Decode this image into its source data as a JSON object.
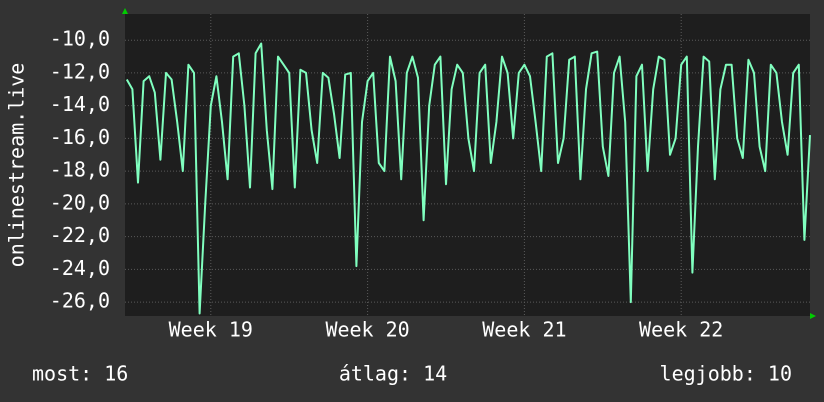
{
  "chart_data": {
    "type": "line",
    "y_label": "onlinestream.live",
    "x": [
      -0.25,
      0,
      0.25,
      0.5,
      0.75,
      1,
      1.25,
      1.5,
      1.75,
      2,
      2.25,
      2.5,
      2.75,
      3,
      3.25,
      3.5,
      3.75,
      4,
      4.25,
      4.5,
      4.75,
      5,
      5.25,
      5.5,
      5.75,
      6,
      6.25,
      6.5,
      6.75,
      7,
      7.25,
      7.5,
      7.75,
      8,
      8.25,
      8.5,
      8.75,
      9,
      9.25,
      9.5,
      9.75,
      10,
      10.25,
      10.5,
      10.75,
      11,
      11.25,
      11.5,
      11.75,
      12,
      12.25,
      12.5,
      12.75,
      13,
      13.25,
      13.5,
      13.75,
      14,
      14.25,
      14.5,
      14.75,
      15,
      15.25,
      15.5,
      15.75,
      16,
      16.25,
      16.5,
      16.75,
      17,
      17.25,
      17.5,
      17.75,
      18,
      18.25,
      18.5,
      18.75,
      19,
      19.25,
      19.5,
      19.75,
      20,
      20.25,
      20.5,
      20.75,
      21,
      21.25,
      21.5,
      21.75,
      22,
      22.25,
      22.5,
      22.75,
      23,
      23.25,
      23.5,
      23.75,
      24,
      24.25,
      24.5,
      24.75,
      25,
      25.25,
      25.5,
      25.75,
      26,
      26.25,
      26.5,
      26.75,
      27,
      27.25,
      27.5,
      27.75,
      28,
      28.25,
      28.5,
      28.75,
      29,
      29.25,
      29.5,
      29.75,
      30,
      30.25
    ],
    "series": [
      {
        "color": "#80ffbf",
        "values": [
          -12.4,
          -13.0,
          -18.7,
          -12.5,
          -12.2,
          -13.2,
          -17.3,
          -12.0,
          -12.4,
          -15.0,
          -18.0,
          -11.5,
          -12.0,
          -26.7,
          -20.0,
          -14.0,
          -12.2,
          -15.0,
          -18.5,
          -11.0,
          -10.8,
          -14.0,
          -19.0,
          -10.8,
          -10.2,
          -15.5,
          -19.1,
          -11.0,
          -11.5,
          -12.0,
          -19.0,
          -11.8,
          -12.0,
          -15.5,
          -17.5,
          -12.0,
          -12.3,
          -14.5,
          -17.2,
          -12.1,
          -12.0,
          -23.8,
          -15.0,
          -12.5,
          -12.0,
          -17.5,
          -18.0,
          -11.0,
          -12.5,
          -18.5,
          -12.0,
          -11.0,
          -12.3,
          -21.0,
          -14.0,
          -11.5,
          -11.0,
          -18.8,
          -13.0,
          -11.5,
          -12.0,
          -16.0,
          -18.0,
          -12.0,
          -11.5,
          -17.5,
          -15.0,
          -11.0,
          -12.0,
          -16.0,
          -12.0,
          -11.5,
          -12.2,
          -15.0,
          -18.0,
          -11.0,
          -10.8,
          -17.5,
          -16.0,
          -11.2,
          -11.0,
          -18.5,
          -13.0,
          -10.8,
          -10.7,
          -16.5,
          -18.3,
          -12.0,
          -11.0,
          -15.0,
          -26.0,
          -12.2,
          -11.5,
          -18.0,
          -13.0,
          -11.0,
          -11.2,
          -17.0,
          -16.0,
          -11.5,
          -11.0,
          -24.2,
          -16.5,
          -11.0,
          -11.3,
          -18.5,
          -13.0,
          -11.5,
          -11.5,
          -16.0,
          -17.2,
          -11.2,
          -12.0,
          -16.5,
          -18.0,
          -11.5,
          -12.0,
          -15.0,
          -17.0,
          -12.0,
          -11.5,
          -22.2,
          -15.8
        ]
      }
    ],
    "xlim": [
      -0.33,
      30.25
    ],
    "xticks": [
      {
        "value": 3.5,
        "label": "Week 19"
      },
      {
        "value": 10.5,
        "label": "Week 20"
      },
      {
        "value": 17.5,
        "label": "Week 21"
      },
      {
        "value": 24.5,
        "label": "Week 22"
      }
    ],
    "ylim": [
      -26.85,
      -8.4
    ],
    "yticks": [
      {
        "value": -26,
        "label": "-26,0"
      },
      {
        "value": -24,
        "label": "-24,0"
      },
      {
        "value": -22,
        "label": "-22,0"
      },
      {
        "value": -20,
        "label": "-20,0"
      },
      {
        "value": -18,
        "label": "-18,0"
      },
      {
        "value": -16,
        "label": "-16,0"
      },
      {
        "value": -14,
        "label": "-14,0"
      },
      {
        "value": -12,
        "label": "-12,0"
      },
      {
        "value": -10,
        "label": "-10,0"
      }
    ],
    "grid": true,
    "footer": [
      "most: 16",
      "átlag: 14",
      "legjobb: 10"
    ]
  }
}
